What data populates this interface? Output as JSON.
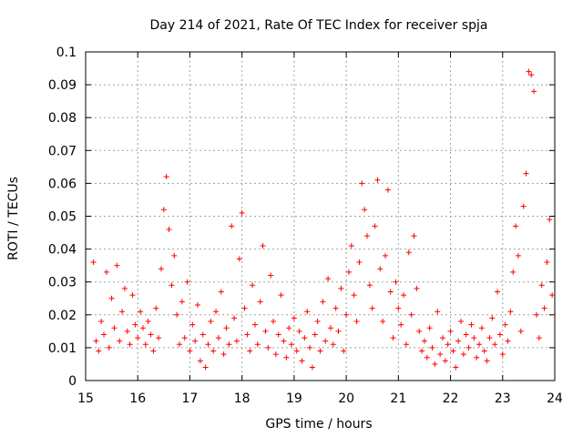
{
  "chart_data": {
    "type": "scatter",
    "title": "Day 214 of 2021, Rate Of TEC Index for receiver spja",
    "xlabel": "GPS time / hours",
    "ylabel": "ROTI / TECUs",
    "xlim": [
      15,
      24
    ],
    "ylim": [
      0,
      0.1
    ],
    "xticks": [
      "15",
      "16",
      "17",
      "18",
      "19",
      "20",
      "21",
      "22",
      "23",
      "24"
    ],
    "yticks": [
      "0",
      "0.01",
      "0.02",
      "0.03",
      "0.04",
      "0.05",
      "0.06",
      "0.07",
      "0.08",
      "0.09",
      "0.1"
    ],
    "grid": true,
    "marker": "plus",
    "color": "#ff0000",
    "series": [
      {
        "name": "ROTI",
        "points": [
          [
            15.15,
            0.036
          ],
          [
            15.2,
            0.012
          ],
          [
            15.25,
            0.009
          ],
          [
            15.3,
            0.018
          ],
          [
            15.35,
            0.014
          ],
          [
            15.4,
            0.033
          ],
          [
            15.45,
            0.01
          ],
          [
            15.5,
            0.025
          ],
          [
            15.55,
            0.016
          ],
          [
            15.6,
            0.035
          ],
          [
            15.65,
            0.012
          ],
          [
            15.7,
            0.021
          ],
          [
            15.75,
            0.028
          ],
          [
            15.8,
            0.015
          ],
          [
            15.85,
            0.011
          ],
          [
            15.9,
            0.026
          ],
          [
            15.95,
            0.017
          ],
          [
            16.0,
            0.013
          ],
          [
            16.05,
            0.021
          ],
          [
            16.1,
            0.016
          ],
          [
            16.15,
            0.011
          ],
          [
            16.2,
            0.018
          ],
          [
            16.25,
            0.014
          ],
          [
            16.3,
            0.009
          ],
          [
            16.35,
            0.022
          ],
          [
            16.4,
            0.013
          ],
          [
            16.45,
            0.034
          ],
          [
            16.5,
            0.052
          ],
          [
            16.55,
            0.062
          ],
          [
            16.6,
            0.046
          ],
          [
            16.65,
            0.029
          ],
          [
            16.7,
            0.038
          ],
          [
            16.75,
            0.02
          ],
          [
            16.8,
            0.011
          ],
          [
            16.85,
            0.024
          ],
          [
            16.9,
            0.013
          ],
          [
            16.95,
            0.03
          ],
          [
            17.0,
            0.009
          ],
          [
            17.05,
            0.017
          ],
          [
            17.1,
            0.012
          ],
          [
            17.15,
            0.023
          ],
          [
            17.2,
            0.006
          ],
          [
            17.25,
            0.014
          ],
          [
            17.3,
            0.004
          ],
          [
            17.35,
            0.011
          ],
          [
            17.4,
            0.018
          ],
          [
            17.45,
            0.009
          ],
          [
            17.5,
            0.021
          ],
          [
            17.55,
            0.013
          ],
          [
            17.6,
            0.027
          ],
          [
            17.65,
            0.008
          ],
          [
            17.7,
            0.016
          ],
          [
            17.75,
            0.011
          ],
          [
            17.8,
            0.047
          ],
          [
            17.85,
            0.019
          ],
          [
            17.9,
            0.012
          ],
          [
            17.95,
            0.037
          ],
          [
            18.0,
            0.051
          ],
          [
            18.05,
            0.022
          ],
          [
            18.1,
            0.014
          ],
          [
            18.15,
            0.009
          ],
          [
            18.2,
            0.029
          ],
          [
            18.25,
            0.017
          ],
          [
            18.3,
            0.011
          ],
          [
            18.35,
            0.024
          ],
          [
            18.4,
            0.041
          ],
          [
            18.45,
            0.015
          ],
          [
            18.5,
            0.01
          ],
          [
            18.55,
            0.032
          ],
          [
            18.6,
            0.018
          ],
          [
            18.65,
            0.008
          ],
          [
            18.7,
            0.014
          ],
          [
            18.75,
            0.026
          ],
          [
            18.8,
            0.012
          ],
          [
            18.85,
            0.007
          ],
          [
            18.9,
            0.016
          ],
          [
            18.95,
            0.011
          ],
          [
            19.0,
            0.019
          ],
          [
            19.05,
            0.009
          ],
          [
            19.1,
            0.015
          ],
          [
            19.15,
            0.006
          ],
          [
            19.2,
            0.013
          ],
          [
            19.25,
            0.021
          ],
          [
            19.3,
            0.01
          ],
          [
            19.35,
            0.004
          ],
          [
            19.4,
            0.014
          ],
          [
            19.45,
            0.018
          ],
          [
            19.5,
            0.009
          ],
          [
            19.55,
            0.024
          ],
          [
            19.6,
            0.012
          ],
          [
            19.65,
            0.031
          ],
          [
            19.7,
            0.016
          ],
          [
            19.75,
            0.011
          ],
          [
            19.8,
            0.022
          ],
          [
            19.85,
            0.015
          ],
          [
            19.9,
            0.028
          ],
          [
            19.95,
            0.009
          ],
          [
            20.0,
            0.02
          ],
          [
            20.05,
            0.033
          ],
          [
            20.1,
            0.041
          ],
          [
            20.15,
            0.026
          ],
          [
            20.2,
            0.018
          ],
          [
            20.25,
            0.036
          ],
          [
            20.3,
            0.06
          ],
          [
            20.35,
            0.052
          ],
          [
            20.4,
            0.044
          ],
          [
            20.45,
            0.029
          ],
          [
            20.5,
            0.022
          ],
          [
            20.55,
            0.047
          ],
          [
            20.6,
            0.061
          ],
          [
            20.65,
            0.034
          ],
          [
            20.7,
            0.018
          ],
          [
            20.75,
            0.038
          ],
          [
            20.8,
            0.058
          ],
          [
            20.85,
            0.027
          ],
          [
            20.9,
            0.013
          ],
          [
            20.95,
            0.03
          ],
          [
            21.0,
            0.022
          ],
          [
            21.05,
            0.017
          ],
          [
            21.1,
            0.026
          ],
          [
            21.15,
            0.011
          ],
          [
            21.2,
            0.039
          ],
          [
            21.25,
            0.02
          ],
          [
            21.3,
            0.044
          ],
          [
            21.35,
            0.028
          ],
          [
            21.4,
            0.015
          ],
          [
            21.45,
            0.009
          ],
          [
            21.5,
            0.012
          ],
          [
            21.55,
            0.007
          ],
          [
            21.6,
            0.016
          ],
          [
            21.65,
            0.01
          ],
          [
            21.7,
            0.005
          ],
          [
            21.75,
            0.021
          ],
          [
            21.8,
            0.008
          ],
          [
            21.85,
            0.013
          ],
          [
            21.9,
            0.006
          ],
          [
            21.95,
            0.011
          ],
          [
            22.0,
            0.015
          ],
          [
            22.05,
            0.009
          ],
          [
            22.1,
            0.004
          ],
          [
            22.15,
            0.012
          ],
          [
            22.2,
            0.018
          ],
          [
            22.25,
            0.008
          ],
          [
            22.3,
            0.014
          ],
          [
            22.35,
            0.01
          ],
          [
            22.4,
            0.017
          ],
          [
            22.45,
            0.013
          ],
          [
            22.5,
            0.007
          ],
          [
            22.55,
            0.011
          ],
          [
            22.6,
            0.016
          ],
          [
            22.65,
            0.009
          ],
          [
            22.7,
            0.006
          ],
          [
            22.75,
            0.013
          ],
          [
            22.8,
            0.019
          ],
          [
            22.85,
            0.011
          ],
          [
            22.9,
            0.027
          ],
          [
            22.95,
            0.014
          ],
          [
            23.0,
            0.008
          ],
          [
            23.05,
            0.017
          ],
          [
            23.1,
            0.012
          ],
          [
            23.15,
            0.021
          ],
          [
            23.2,
            0.033
          ],
          [
            23.25,
            0.047
          ],
          [
            23.3,
            0.038
          ],
          [
            23.35,
            0.015
          ],
          [
            23.4,
            0.053
          ],
          [
            23.45,
            0.063
          ],
          [
            23.5,
            0.094
          ],
          [
            23.55,
            0.093
          ],
          [
            23.6,
            0.088
          ],
          [
            23.65,
            0.02
          ],
          [
            23.7,
            0.013
          ],
          [
            23.75,
            0.029
          ],
          [
            23.8,
            0.022
          ],
          [
            23.85,
            0.036
          ],
          [
            23.9,
            0.049
          ],
          [
            23.95,
            0.026
          ]
        ]
      }
    ]
  }
}
